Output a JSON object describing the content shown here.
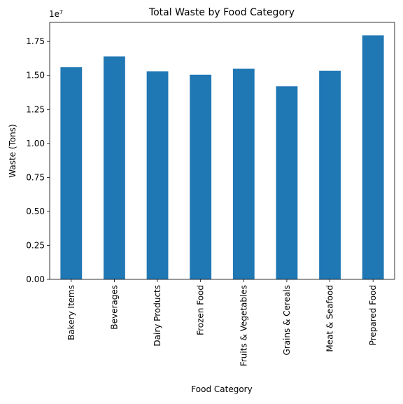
{
  "chart_data": {
    "type": "bar",
    "title": "Total Waste by Food Category",
    "xlabel": "Food Category",
    "ylabel": "Waste (Tons)",
    "y_offset_label": "1e7",
    "y_scale": 10000000,
    "ylim": [
      0,
      18900000
    ],
    "yticks": [
      0,
      2500000,
      5000000,
      7500000,
      10000000,
      12500000,
      15000000,
      17500000
    ],
    "ytick_labels": [
      "0.00",
      "0.25",
      "0.50",
      "0.75",
      "1.00",
      "1.25",
      "1.50",
      "1.75"
    ],
    "categories": [
      "Bakery Items",
      "Beverages",
      "Dairy Products",
      "Frozen Food",
      "Fruits & Vegetables",
      "Grains & Cereals",
      "Meat & Seafood",
      "Prepared Food"
    ],
    "values": [
      15600000,
      16400000,
      15300000,
      15050000,
      15500000,
      14200000,
      15350000,
      17950000
    ],
    "bar_color": "#1f77b4",
    "grid": false,
    "legend": "none"
  }
}
